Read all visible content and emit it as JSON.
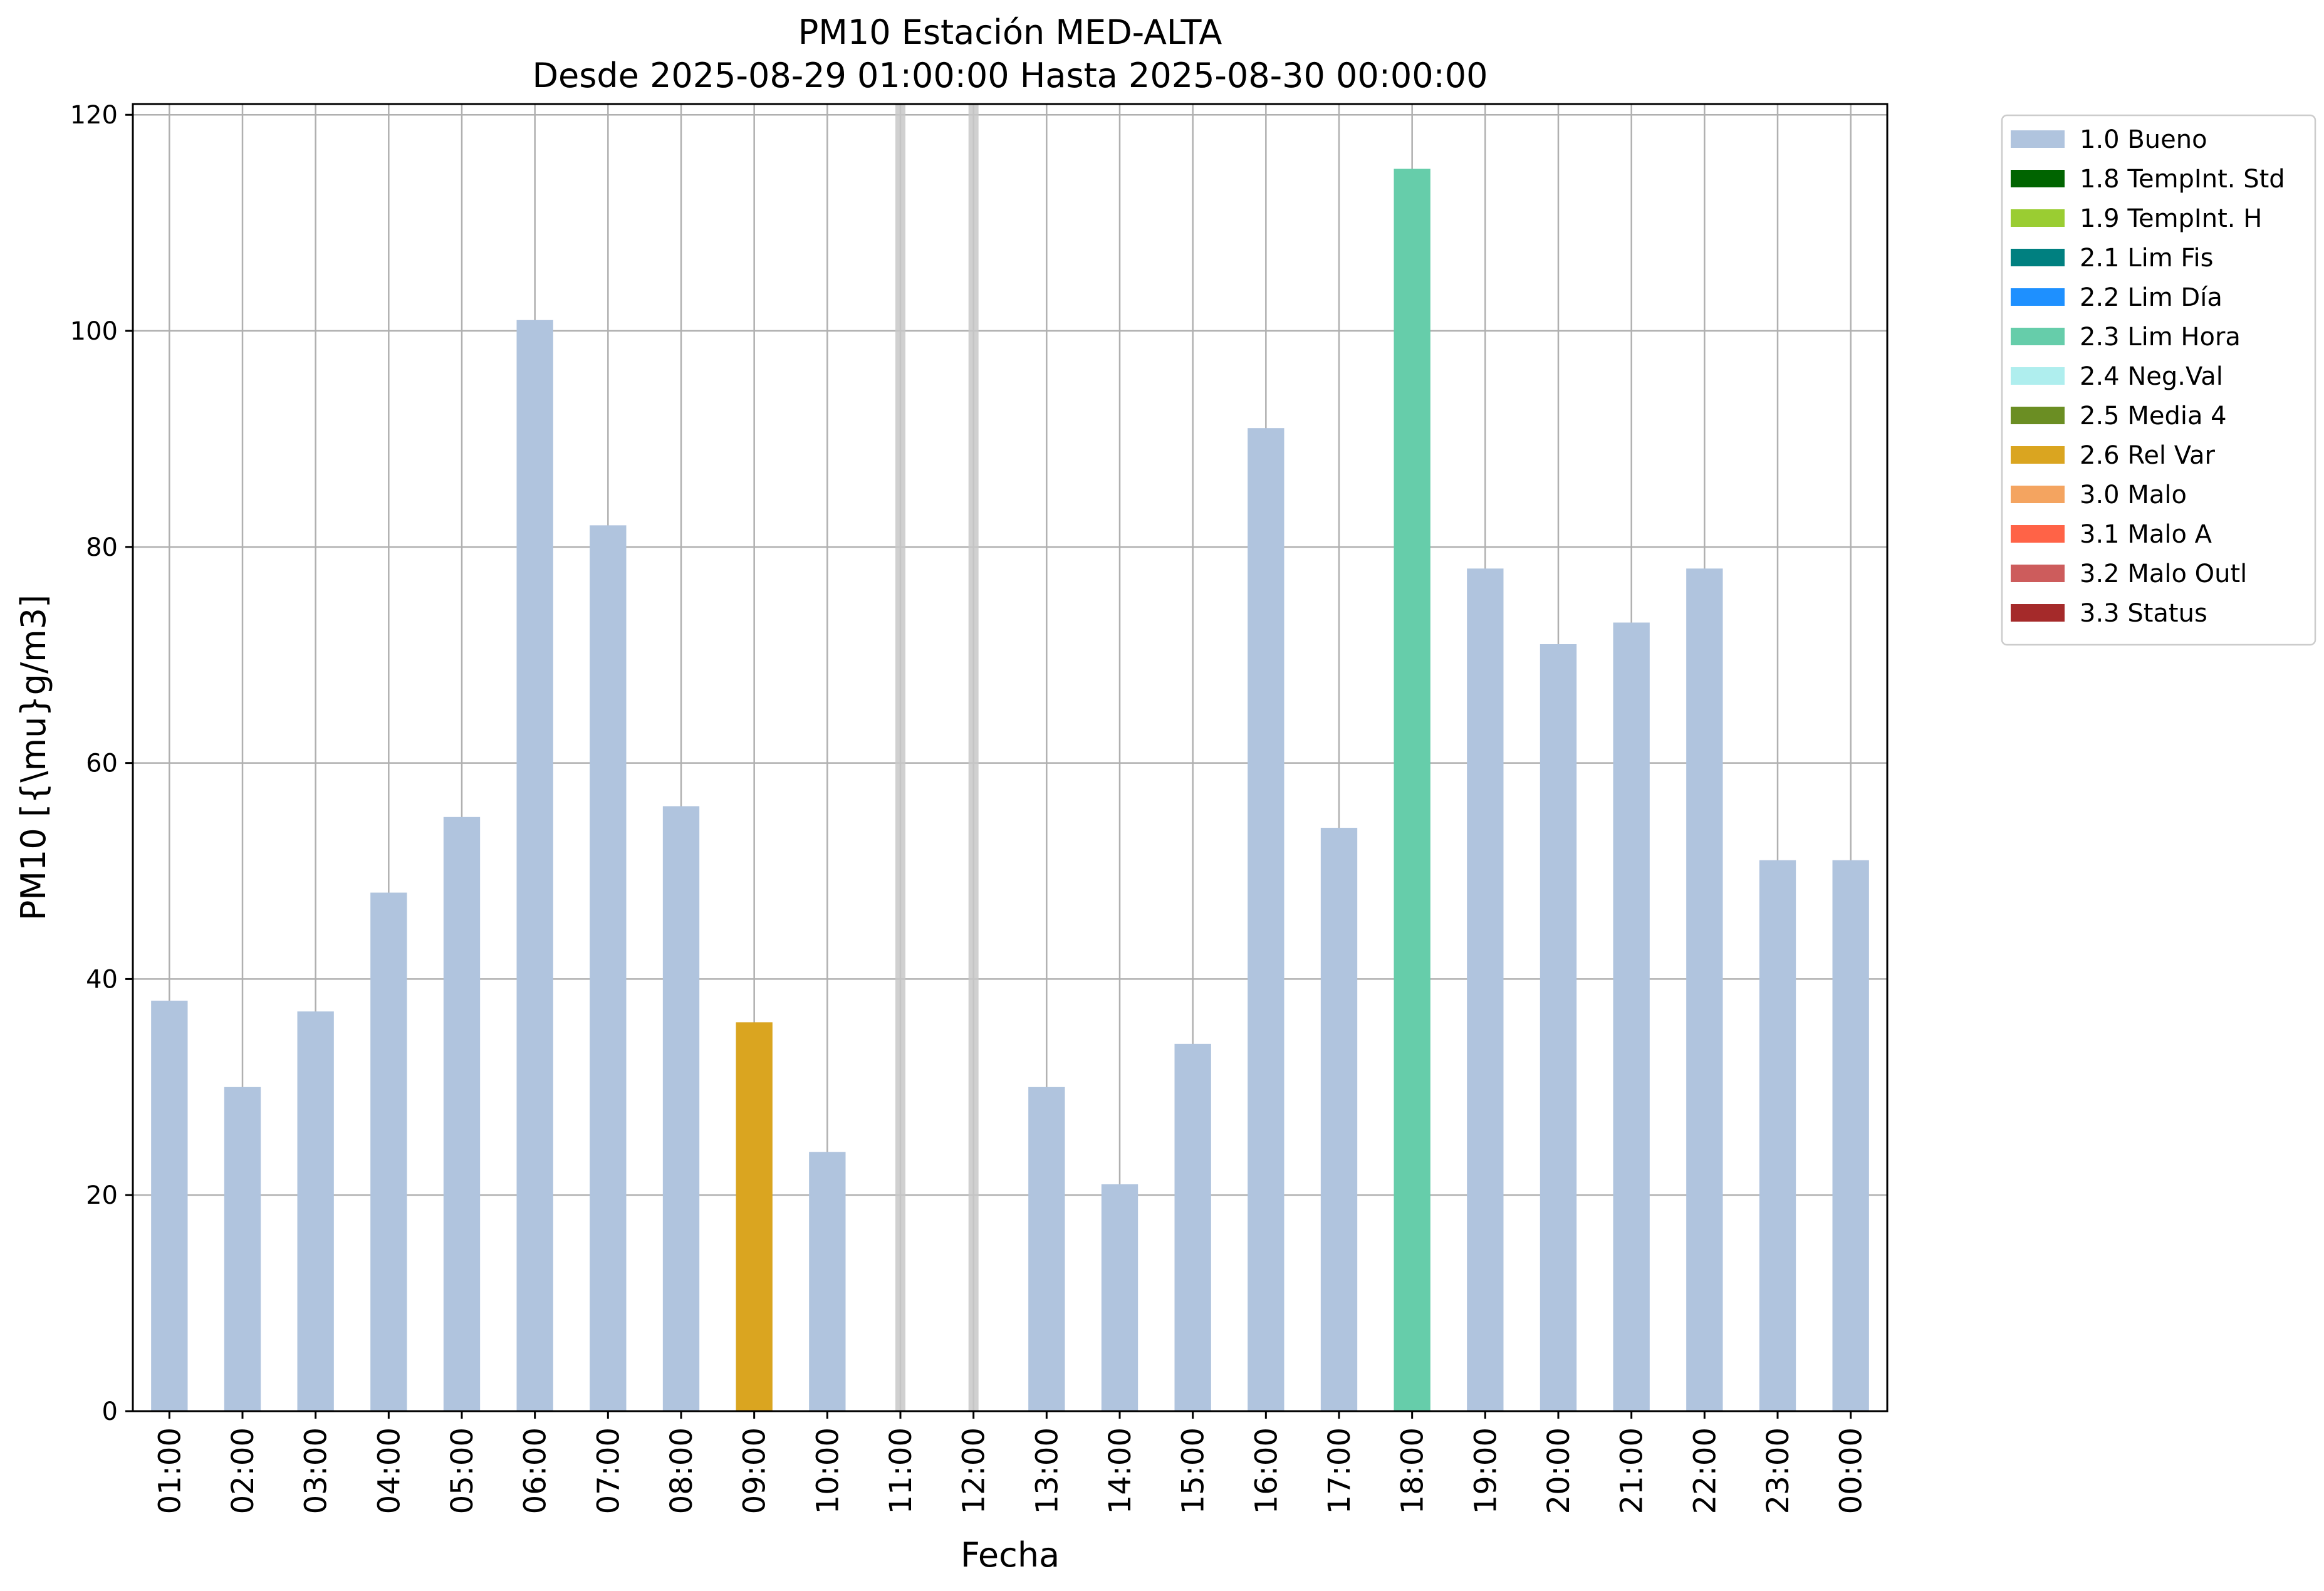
{
  "chart_data": {
    "type": "bar",
    "title": "PM10 Estación MED-ALTA",
    "subtitle": "Desde 2025-08-29 01:00:00 Hasta 2025-08-30 00:00:00",
    "xlabel": "Fecha",
    "ylabel": "PM10 [{\\mu}g/m3]",
    "ylim": [
      0,
      121
    ],
    "yticks": [
      0,
      20,
      40,
      60,
      80,
      100,
      120
    ],
    "grid": true,
    "legend_position": "outside-top-right",
    "categories": [
      "01:00",
      "02:00",
      "03:00",
      "04:00",
      "05:00",
      "06:00",
      "07:00",
      "08:00",
      "09:00",
      "10:00",
      "11:00",
      "12:00",
      "13:00",
      "14:00",
      "15:00",
      "16:00",
      "17:00",
      "18:00",
      "19:00",
      "20:00",
      "21:00",
      "22:00",
      "23:00",
      "00:00"
    ],
    "values": [
      38,
      30,
      37,
      48,
      55,
      101,
      82,
      56,
      36,
      24,
      null,
      null,
      30,
      21,
      34,
      91,
      54,
      115,
      78,
      71,
      73,
      78,
      51,
      51
    ],
    "flags": [
      "1.0 Bueno",
      "1.0 Bueno",
      "1.0 Bueno",
      "1.0 Bueno",
      "1.0 Bueno",
      "1.0 Bueno",
      "1.0 Bueno",
      "1.0 Bueno",
      "2.6 Rel Var",
      "1.0 Bueno",
      "",
      "",
      "1.0 Bueno",
      "1.0 Bueno",
      "1.0 Bueno",
      "1.0 Bueno",
      "1.0 Bueno",
      "2.3 Lim Hora",
      "1.0 Bueno",
      "1.0 Bueno",
      "1.0 Bueno",
      "1.0 Bueno",
      "1.0 Bueno",
      "1.0 Bueno"
    ],
    "missing_marker_color": "#c8c8c8",
    "legend": [
      {
        "label": "1.0 Bueno",
        "color": "#b0c4de"
      },
      {
        "label": "1.8 TempInt. Std",
        "color": "#006400"
      },
      {
        "label": "1.9 TempInt. H",
        "color": "#9acd32"
      },
      {
        "label": "2.1 Lim Fis",
        "color": "#008080"
      },
      {
        "label": "2.2 Lim Día",
        "color": "#1e90ff"
      },
      {
        "label": "2.3 Lim Hora",
        "color": "#66cdaa"
      },
      {
        "label": "2.4 Neg.Val",
        "color": "#afeeee"
      },
      {
        "label": "2.5 Media 4",
        "color": "#6b8e23"
      },
      {
        "label": "2.6 Rel Var",
        "color": "#daa520"
      },
      {
        "label": "3.0 Malo",
        "color": "#f4a460"
      },
      {
        "label": "3.1 Malo A",
        "color": "#ff6347"
      },
      {
        "label": "3.2 Malo Outl",
        "color": "#cd5c5c"
      },
      {
        "label": "3.3 Status",
        "color": "#a52a2a"
      }
    ]
  }
}
